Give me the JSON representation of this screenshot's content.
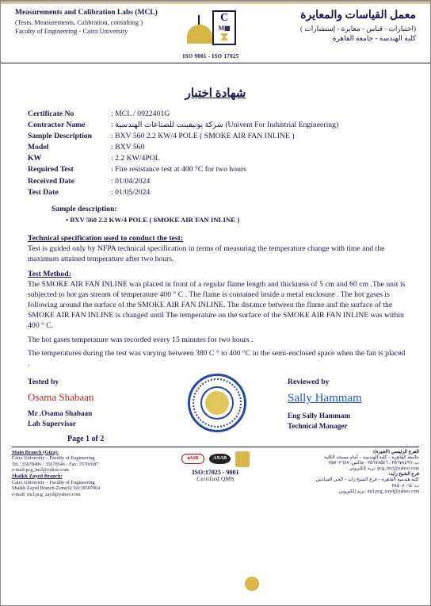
{
  "header": {
    "left": {
      "line1": "Measurements and Calibration Labs (MCL)",
      "line2": "(Tests, Measurements, Calibration, consulting )",
      "line3": "Faculty of Engineering - Cairo University"
    },
    "iso": "ISO 9001 - ISO 17025",
    "right": {
      "ar1": "معمل القياسات والمعايرة",
      "ar2": "(اختبارات - قياس - معايرة - إستشارات )",
      "ar3": "كلية الهندسة - جامعة القاهرة"
    }
  },
  "title_ar": "شهادة اختبار",
  "fields": {
    "certificate_no": {
      "label": "Certificate No",
      "value": "MCL / 0922401G"
    },
    "contractor": {
      "label": "Contractor Name",
      "value": "شركة يونيفينت للصناعات الهندسية (Univent For Industrial Engineering)"
    },
    "sample_desc": {
      "label": "Sample Description",
      "value": "BXV 560 2.2 KW/4 POLE ( SMOKE AIR FAN INLINE )"
    },
    "model": {
      "label": "Model",
      "value": "BXV 560"
    },
    "kw": {
      "label": "KW",
      "value": "2.2 KW/4POL"
    },
    "required_test": {
      "label": "Required  Test",
      "value": "Fire resistance test at 400 °C for two hours"
    },
    "received": {
      "label": "Received Date",
      "value": "01/04/2024"
    },
    "test_date": {
      "label": "Test Date",
      "value": "01/05/2024"
    }
  },
  "sample_desc_heading": "Sample description:",
  "sample_bullet": "BXV 560 2.2 KW/4 POLE ( SMOKE AIR FAN INLINE )",
  "spec_heading": "Technical specification used to conduct the test:",
  "spec_text": "Test is guided only by NFPA technical specification in terms of measuring the temperature change with time and the maximum attained temperature after two hours.",
  "method_heading": "Test Method:",
  "method_p1": "The  SMOKE AIR FAN INLINE was placed in front of a regular flame length and thickness of 5 cm and 60 cm .The unit is subjected to hot gas stream of temperature 400 ° C . The flame is contained inside a metal enclosure . The  hot gases is following  around the surface of the SMOKE AIR FAN INLINE. The distance between the flame and the surface of the SMOKE AIR FAN INLINE is changed until The temperature on the surface of the SMOKE AIR FAN INLINE was within 400 ° C.",
  "method_p2": "The hot gases temperature was recorded every 15 minutes for two hours .",
  "method_p3": "The temperatures during  the test was varying between 380 C ° to 400 °C  in the semi-enclosed space when the fan is placed .",
  "sign": {
    "left": {
      "role": "Tested by",
      "sig": "Osama Shabaan",
      "name": "Mr .Osama Shabaan",
      "title": "Lab Supervisor"
    },
    "right": {
      "role": "Reviewed by",
      "sig": "Sally Hammam",
      "name": "Eng Sally Hammam",
      "title": "Technical Manager"
    }
  },
  "page": "Page 1 of 2",
  "footer": {
    "left_b1": "Main Branch (Giza):",
    "left_l1": "Cairo University – Faculty of Engineering",
    "left_l2": "Tel.: 35678496 / 35678546 - Fax: 35702687",
    "left_l3": "e-mail:pcg_mcl@yahoo.com",
    "left_b2": "Shaikh Zayed Branch:",
    "left_l4": "Cairo University – Faculty of Engineering",
    "left_l5": "Shaikh Zayed Branch-Zone(6) Tel:38507064",
    "left_l6": "e-mail: mcl.pcg_zayd@yahoo.com",
    "iso": "ISO:17025 - 9001",
    "cq": "Certified QMS",
    "right_b1": "الفرع الرئيسي (الجيزة):",
    "right_l1": "جامعة القاهرة – كلية الهندسة – أمام مسجد الكلية",
    "right_l2": "ت: ٣٥٦٧٨٤٩٦ / ٣٥٦٧٨٥٤٦ - فاكس: ٣٥٧٠٢٦٨٧",
    "right_l3": "pcg_mcl@yahoo.com :بريد إلكتروني",
    "right_b2": "فرع الشيخ زايد:",
    "right_l4": "كلية هندسة القاهرة – فرع الشيخ زايد – الحي السادس",
    "right_l5": "ت: ٣٨٥٠٧٠٦٤",
    "right_l6": "mcl.pcg_zayd@yahoo.com :بريد إلكتروني"
  }
}
